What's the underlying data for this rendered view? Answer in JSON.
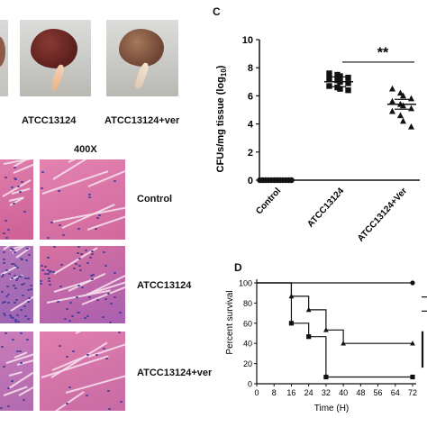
{
  "panel_a": {
    "captions": [
      "ATCC13124",
      "ATCC13124+ver"
    ]
  },
  "panel_b": {
    "magnification": "400X",
    "row_labels": [
      "Control",
      "ATCC13124",
      "ATCC13124+ver"
    ]
  },
  "panel_c": {
    "letter": "C",
    "significance": "**"
  },
  "panel_d": {
    "letter": "D"
  },
  "colors": {
    "he_pink": "#d7669b",
    "he_purple": "#8d4fa6",
    "organ_dark": "#6e2a2a",
    "organ_light": "#9a6a4e"
  },
  "chart_data": [
    {
      "type": "scatter",
      "ylabel": "CFUs/mg tissue (log10)",
      "ylabel_main": "CFUs/mg tissue (log",
      "ylabel_sub": "10",
      "ylabel_end": ")",
      "ylim": [
        0,
        10
      ],
      "yticks": [
        0,
        2,
        4,
        6,
        8,
        10
      ],
      "categories": [
        "Control",
        "ATCC13124",
        "ATCC13124+Ver"
      ],
      "series": [
        {
          "category": "Control",
          "marker": "circle",
          "values": [
            0,
            0,
            0,
            0,
            0,
            0,
            0,
            0,
            0,
            0,
            0,
            0
          ],
          "mean": 0
        },
        {
          "category": "ATCC13124",
          "marker": "square",
          "values": [
            7.6,
            7.5,
            7.4,
            7.3,
            7.2,
            7.1,
            7.0,
            6.9,
            6.7,
            6.6,
            6.5,
            6.4
          ],
          "mean": 7.0
        },
        {
          "category": "ATCC13124+Ver",
          "marker": "triangle",
          "values": [
            6.5,
            6.2,
            6.0,
            5.8,
            5.6,
            5.4,
            5.3,
            5.1,
            4.9,
            4.6,
            4.2,
            3.8
          ],
          "mean": 5.4
        }
      ],
      "significance": {
        "between": [
          "ATCC13124",
          "ATCC13124+Ver"
        ],
        "label": "**"
      }
    },
    {
      "type": "line",
      "xlabel": "Time (H)",
      "ylabel": "Percent survival",
      "xlim": [
        0,
        72
      ],
      "ylim": [
        0,
        100
      ],
      "xticks": [
        0,
        8,
        16,
        24,
        32,
        40,
        48,
        56,
        64,
        72
      ],
      "yticks": [
        0,
        20,
        40,
        60,
        80,
        100
      ],
      "step": true,
      "series": [
        {
          "marker": "circle",
          "x": [
            0,
            72
          ],
          "y": [
            100,
            100
          ]
        },
        {
          "marker": "square",
          "x": [
            0,
            16,
            24,
            32,
            72
          ],
          "y": [
            100,
            60,
            46.7,
            6.7,
            6.7
          ]
        },
        {
          "marker": "triangle",
          "x": [
            0,
            16,
            24,
            32,
            40,
            72
          ],
          "y": [
            100,
            86.7,
            73.3,
            53.3,
            40,
            40
          ]
        }
      ]
    }
  ]
}
